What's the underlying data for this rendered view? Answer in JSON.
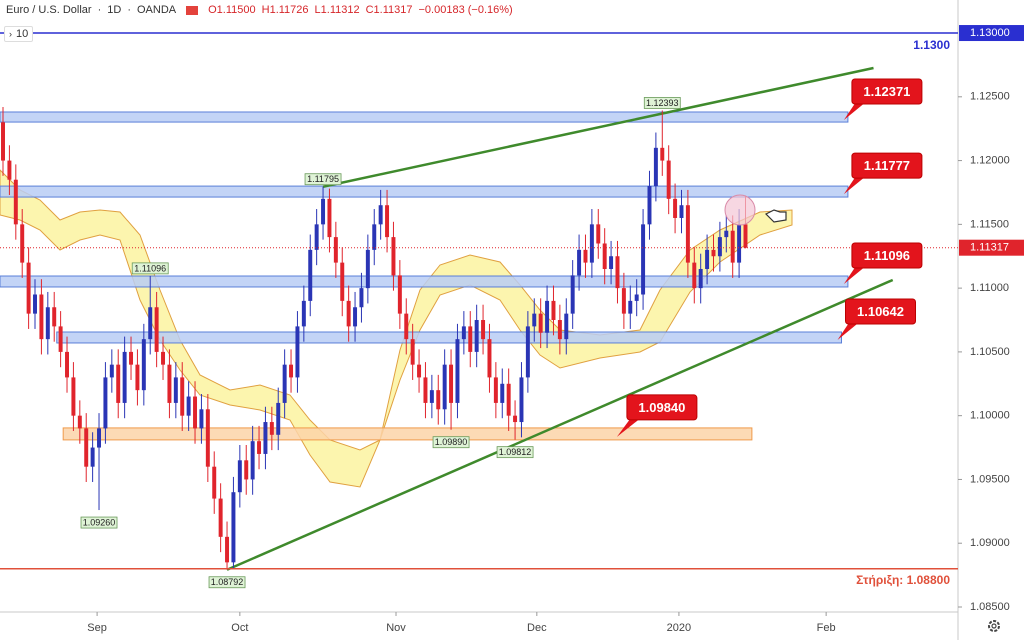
{
  "header": {
    "symbol": "Euro / U.S. Dollar",
    "interval": "1D",
    "source": "OANDA",
    "open": "O1.11500",
    "high": "H1.11726",
    "low": "L1.11312",
    "close": "C1.11317",
    "change": "−0.00183 (−0.16%)",
    "indicator": "10"
  },
  "chart_data": {
    "type": "candlestick",
    "up_color": "#2a35b5",
    "down_color": "#e0242c",
    "xlim": [
      -0.47,
      149.2
    ],
    "ylim": [
      1.08398,
      1.13259
    ],
    "xticks": [
      {
        "value": 14.7,
        "label": "Sep"
      },
      {
        "value": 37,
        "label": "Oct"
      },
      {
        "value": 61.4,
        "label": "Nov"
      },
      {
        "value": 83.4,
        "label": "Dec"
      },
      {
        "value": 105.6,
        "label": "2020"
      },
      {
        "value": 128.6,
        "label": "Feb"
      }
    ],
    "yticks": [
      {
        "value": 1.085,
        "label": "1.08500"
      },
      {
        "value": 1.09,
        "label": "1.09000"
      },
      {
        "value": 1.095,
        "label": "1.09500"
      },
      {
        "value": 1.1,
        "label": "1.10000"
      },
      {
        "value": 1.105,
        "label": "1.10500"
      },
      {
        "value": 1.11,
        "label": "1.11000"
      },
      {
        "value": 1.115,
        "label": "1.11500"
      },
      {
        "value": 1.12,
        "label": "1.12000"
      },
      {
        "value": 1.125,
        "label": "1.12500"
      }
    ],
    "open": [
      1.123,
      1.12,
      1.1185,
      1.115,
      1.112,
      1.108,
      1.1095,
      1.106,
      1.1085,
      1.107,
      1.105,
      1.103,
      1.1,
      1.099,
      1.096,
      1.0975,
      1.099,
      1.103,
      1.104,
      1.101,
      1.105,
      1.104,
      1.102,
      1.106,
      1.1085,
      1.105,
      1.104,
      1.101,
      1.103,
      1.1,
      1.1015,
      1.099,
      1.1005,
      1.096,
      1.0935,
      1.0905,
      1.0885,
      1.094,
      1.0965,
      1.095,
      1.098,
      1.097,
      1.0995,
      1.0985,
      1.101,
      1.104,
      1.103,
      1.107,
      1.109,
      1.113,
      1.115,
      1.117,
      1.114,
      1.112,
      1.109,
      1.107,
      1.1085,
      1.11,
      1.113,
      1.115,
      1.1165,
      1.114,
      1.111,
      1.108,
      1.106,
      1.104,
      1.103,
      1.101,
      1.102,
      1.1005,
      1.104,
      1.101,
      1.106,
      1.107,
      1.105,
      1.1075,
      1.106,
      1.103,
      1.101,
      1.1025,
      1.1,
      1.0995,
      1.103,
      1.107,
      1.108,
      1.1065,
      1.109,
      1.1075,
      1.106,
      1.108,
      1.111,
      1.113,
      1.112,
      1.115,
      1.1135,
      1.1115,
      1.1125,
      1.11,
      1.108,
      1.109,
      1.1095,
      1.115,
      1.118,
      1.121,
      1.12,
      1.117,
      1.1155,
      1.1165,
      1.112,
      1.11,
      1.1115,
      1.113,
      1.1125,
      1.114,
      1.1145,
      1.112,
      1.115
    ],
    "high": [
      1.1242,
      1.1212,
      1.1197,
      1.1162,
      1.1132,
      1.1107,
      1.1107,
      1.1097,
      1.1097,
      1.1082,
      1.1062,
      1.1042,
      1.1012,
      1.1002,
      1.0987,
      1.1002,
      1.1042,
      1.1052,
      1.1052,
      1.1062,
      1.1062,
      1.1052,
      1.1072,
      1.11096,
      1.1097,
      1.1062,
      1.1052,
      1.1042,
      1.1042,
      1.1027,
      1.1027,
      1.1017,
      1.1017,
      1.0972,
      1.0947,
      1.0917,
      1.0952,
      1.0977,
      1.0977,
      1.0992,
      1.0992,
      1.1007,
      1.1007,
      1.1022,
      1.1052,
      1.1052,
      1.1082,
      1.1102,
      1.1142,
      1.1162,
      1.11795,
      1.1178,
      1.1152,
      1.1132,
      1.1102,
      1.1097,
      1.1112,
      1.1142,
      1.1162,
      1.1177,
      1.1177,
      1.1152,
      1.1122,
      1.1092,
      1.1072,
      1.1052,
      1.1042,
      1.1032,
      1.1032,
      1.1052,
      1.1052,
      1.1072,
      1.1082,
      1.1082,
      1.1087,
      1.1087,
      1.1072,
      1.1042,
      1.1037,
      1.1037,
      1.1012,
      1.1042,
      1.1082,
      1.1092,
      1.1092,
      1.1102,
      1.1102,
      1.1087,
      1.1092,
      1.1122,
      1.1142,
      1.1142,
      1.1162,
      1.1162,
      1.1147,
      1.1137,
      1.1137,
      1.1112,
      1.1102,
      1.1107,
      1.1162,
      1.1192,
      1.1222,
      1.12393,
      1.1212,
      1.1182,
      1.1177,
      1.1177,
      1.1132,
      1.1127,
      1.1142,
      1.1142,
      1.1152,
      1.1157,
      1.1157,
      1.1162,
      1.11726
    ],
    "low": [
      1.1188,
      1.1173,
      1.1138,
      1.1108,
      1.1068,
      1.1068,
      1.1048,
      1.1048,
      1.1058,
      1.1038,
      1.1018,
      1.0988,
      1.0978,
      1.0948,
      1.0948,
      1.0926,
      1.0978,
      1.1018,
      1.0998,
      1.0998,
      1.1028,
      1.1008,
      1.1008,
      1.1048,
      1.1038,
      1.1028,
      1.0998,
      1.0998,
      1.0988,
      1.0988,
      1.0978,
      1.0978,
      1.0948,
      1.0923,
      1.0893,
      1.08792,
      1.088,
      1.0928,
      1.0938,
      1.0938,
      1.0958,
      1.0958,
      1.0973,
      1.0973,
      1.0998,
      1.1018,
      1.1018,
      1.1058,
      1.1078,
      1.1118,
      1.1138,
      1.1128,
      1.1108,
      1.1078,
      1.1058,
      1.1058,
      1.1073,
      1.1088,
      1.1118,
      1.1138,
      1.1128,
      1.1098,
      1.1068,
      1.1048,
      1.1028,
      1.1018,
      1.0998,
      1.0998,
      1.0993,
      1.0993,
      1.0989,
      1.0998,
      1.1048,
      1.1038,
      1.1038,
      1.1048,
      1.1018,
      1.0998,
      1.0998,
      1.0988,
      1.09812,
      1.0983,
      1.1018,
      1.1058,
      1.1053,
      1.1053,
      1.1063,
      1.1048,
      1.1048,
      1.1068,
      1.1098,
      1.1108,
      1.1108,
      1.1123,
      1.1103,
      1.1103,
      1.1088,
      1.1068,
      1.1068,
      1.1078,
      1.1083,
      1.1138,
      1.1168,
      1.1188,
      1.1158,
      1.1143,
      1.1143,
      1.1108,
      1.1088,
      1.1088,
      1.1103,
      1.1113,
      1.1113,
      1.1128,
      1.1108,
      1.1108,
      1.11312
    ],
    "close": [
      1.12,
      1.1185,
      1.115,
      1.112,
      1.108,
      1.1095,
      1.106,
      1.1085,
      1.107,
      1.105,
      1.103,
      1.1,
      1.099,
      1.096,
      1.0975,
      1.099,
      1.103,
      1.104,
      1.101,
      1.105,
      1.104,
      1.102,
      1.106,
      1.1085,
      1.105,
      1.104,
      1.101,
      1.103,
      1.1,
      1.1015,
      1.099,
      1.1005,
      1.096,
      1.0935,
      1.0905,
      1.0885,
      1.094,
      1.0965,
      1.095,
      1.098,
      1.097,
      1.0995,
      1.0985,
      1.101,
      1.104,
      1.103,
      1.107,
      1.109,
      1.113,
      1.115,
      1.117,
      1.114,
      1.112,
      1.109,
      1.107,
      1.1085,
      1.11,
      1.113,
      1.115,
      1.1165,
      1.114,
      1.111,
      1.108,
      1.106,
      1.104,
      1.103,
      1.101,
      1.102,
      1.1005,
      1.104,
      1.101,
      1.106,
      1.107,
      1.105,
      1.1075,
      1.106,
      1.103,
      1.101,
      1.1025,
      1.1,
      1.0995,
      1.103,
      1.107,
      1.108,
      1.1065,
      1.109,
      1.1075,
      1.106,
      1.108,
      1.111,
      1.113,
      1.112,
      1.115,
      1.1135,
      1.1115,
      1.1125,
      1.11,
      1.108,
      1.109,
      1.1095,
      1.115,
      1.118,
      1.121,
      1.12,
      1.117,
      1.1155,
      1.1165,
      1.112,
      1.11,
      1.1115,
      1.113,
      1.1125,
      1.114,
      1.1145,
      1.112,
      1.115,
      1.11317
    ],
    "price_line_color": "#e0242c",
    "levels": [
      {
        "value": 1.13,
        "label": "1.1300",
        "axis_label": "1.13000",
        "color": "#2a2fd0",
        "label_side": "above"
      },
      {
        "value": 1.088,
        "label": "Στήριξη: 1.08800",
        "color": "#e0503a",
        "label_side": "below"
      }
    ],
    "zones": [
      {
        "level": 1.12371,
        "range": [
          1.12302,
          1.12381
        ],
        "xrange": [
          -0.47,
          132
        ],
        "fill": "#b8cdf5",
        "stroke": "#5a7fd8",
        "callout": "outside"
      },
      {
        "level": 1.11777,
        "range": [
          1.11714,
          1.118
        ],
        "xrange": [
          -0.47,
          132
        ],
        "fill": "#b8cdf5",
        "stroke": "#5a7fd8",
        "callout": "outside"
      },
      {
        "level": 1.11096,
        "range": [
          1.11009,
          1.11095
        ],
        "xrange": [
          -0.47,
          132
        ],
        "fill": "#b8cdf5",
        "stroke": "#5a7fd8",
        "callout": "outside"
      },
      {
        "level": 1.10642,
        "range": [
          1.1057,
          1.10656
        ],
        "xrange": [
          8.4,
          131
        ],
        "fill": "#b8cdf5",
        "stroke": "#5a7fd8",
        "callout": "outside"
      },
      {
        "level": {
          "value": 1.0984,
          "label": "1.09840"
        },
        "range": [
          1.0981,
          1.09904
        ],
        "xrange": [
          9.4,
          117
        ],
        "fill": "#fbd3a8",
        "stroke": "#f09a4a",
        "callout": "inside"
      }
    ],
    "callout_color": "#e3141c",
    "trendlines": [
      {
        "from": [
          50,
          1.11795
        ],
        "to": [
          136,
          1.12726
        ],
        "color": "#3f8a2c"
      },
      {
        "from": [
          35,
          1.08792
        ],
        "to": [
          139,
          1.11064
        ],
        "color": "#3f8a2c"
      }
    ],
    "pivots": [
      {
        "value": 1.12393,
        "x": 103
      },
      {
        "value": 1.11795,
        "x": 50
      },
      {
        "value": 1.11096,
        "x": 23
      },
      {
        "value": {
          "value": 1.0926,
          "label": "1.09260"
        },
        "x": 15
      },
      {
        "value": 1.08792,
        "x": 35
      },
      {
        "value": {
          "value": 1.0989,
          "label": "1.09890"
        },
        "x": 70
      },
      {
        "value": 1.09812,
        "x": 80
      }
    ]
  }
}
